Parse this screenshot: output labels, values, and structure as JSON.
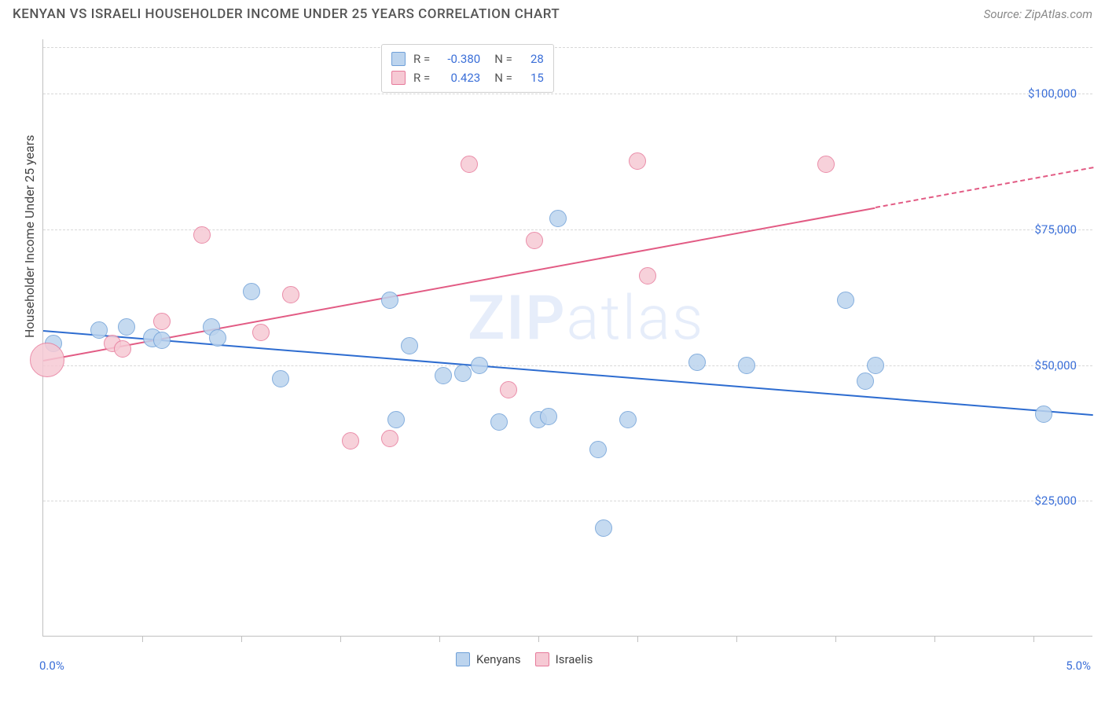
{
  "header": {
    "title": "KENYAN VS ISRAELI HOUSEHOLDER INCOME UNDER 25 YEARS CORRELATION CHART",
    "source_prefix": "Source: ",
    "source_name": "ZipAtlas.com"
  },
  "chart": {
    "type": "scatter",
    "y_axis": {
      "title": "Householder Income Under 25 years",
      "min": 0,
      "max": 110000,
      "ticks": [
        25000,
        50000,
        75000,
        100000
      ],
      "tick_labels": [
        "$25,000",
        "$50,000",
        "$75,000",
        "$100,000"
      ],
      "grid_color": "#d8d8d8",
      "label_color": "#3b6fd8"
    },
    "x_axis": {
      "min": 0,
      "max": 5.3,
      "ticks": [
        0.5,
        1.0,
        1.5,
        2.0,
        2.5,
        3.0,
        3.5,
        4.0,
        4.5,
        5.0
      ],
      "end_labels": {
        "left": "0.0%",
        "right": "5.0%"
      },
      "label_color": "#3b6fd8"
    },
    "watermark": {
      "text_bold": "ZIP",
      "text_light": "atlas"
    },
    "series": [
      {
        "key": "kenyans",
        "label": "Kenyans",
        "fill": "#bcd4ee",
        "stroke": "#6fa0d8",
        "trend_color": "#2d6cd0",
        "R": "-0.380",
        "N": "28",
        "trend": {
          "x1": 0.0,
          "y1": 56500,
          "x2": 5.3,
          "y2": 41000,
          "dash_from_x": null
        },
        "points": [
          {
            "x": 0.05,
            "y": 54000,
            "r": 11
          },
          {
            "x": 0.28,
            "y": 56500,
            "r": 11
          },
          {
            "x": 0.42,
            "y": 57000,
            "r": 11
          },
          {
            "x": 0.55,
            "y": 55000,
            "r": 12
          },
          {
            "x": 0.6,
            "y": 54500,
            "r": 11
          },
          {
            "x": 0.85,
            "y": 57000,
            "r": 11
          },
          {
            "x": 0.88,
            "y": 55000,
            "r": 11
          },
          {
            "x": 1.05,
            "y": 63500,
            "r": 11
          },
          {
            "x": 1.2,
            "y": 47500,
            "r": 11
          },
          {
            "x": 1.75,
            "y": 62000,
            "r": 11
          },
          {
            "x": 1.78,
            "y": 40000,
            "r": 11
          },
          {
            "x": 1.85,
            "y": 53500,
            "r": 11
          },
          {
            "x": 2.02,
            "y": 48000,
            "r": 11
          },
          {
            "x": 2.12,
            "y": 48500,
            "r": 11
          },
          {
            "x": 2.2,
            "y": 50000,
            "r": 11
          },
          {
            "x": 2.3,
            "y": 39500,
            "r": 11
          },
          {
            "x": 2.5,
            "y": 40000,
            "r": 11
          },
          {
            "x": 2.55,
            "y": 40500,
            "r": 11
          },
          {
            "x": 2.6,
            "y": 77000,
            "r": 11
          },
          {
            "x": 2.8,
            "y": 34500,
            "r": 11
          },
          {
            "x": 2.83,
            "y": 20000,
            "r": 11
          },
          {
            "x": 2.95,
            "y": 40000,
            "r": 11
          },
          {
            "x": 3.3,
            "y": 50500,
            "r": 11
          },
          {
            "x": 3.55,
            "y": 50000,
            "r": 11
          },
          {
            "x": 4.05,
            "y": 62000,
            "r": 11
          },
          {
            "x": 4.15,
            "y": 47000,
            "r": 11
          },
          {
            "x": 4.2,
            "y": 50000,
            "r": 11
          },
          {
            "x": 5.05,
            "y": 41000,
            "r": 11
          }
        ]
      },
      {
        "key": "israelis",
        "label": "Israelis",
        "fill": "#f6c9d4",
        "stroke": "#e77a9b",
        "trend_color": "#e25b84",
        "R": "0.423",
        "N": "15",
        "trend": {
          "x1": 0.0,
          "y1": 51000,
          "x2": 5.3,
          "y2": 86500,
          "dash_from_x": 4.2
        },
        "points": [
          {
            "x": 0.02,
            "y": 51000,
            "r": 22
          },
          {
            "x": 0.35,
            "y": 54000,
            "r": 11
          },
          {
            "x": 0.4,
            "y": 53000,
            "r": 11
          },
          {
            "x": 0.6,
            "y": 58000,
            "r": 11
          },
          {
            "x": 0.8,
            "y": 74000,
            "r": 11
          },
          {
            "x": 1.1,
            "y": 56000,
            "r": 11
          },
          {
            "x": 1.25,
            "y": 63000,
            "r": 11
          },
          {
            "x": 1.55,
            "y": 36000,
            "r": 11
          },
          {
            "x": 1.75,
            "y": 36500,
            "r": 11
          },
          {
            "x": 2.15,
            "y": 87000,
            "r": 11
          },
          {
            "x": 2.35,
            "y": 45500,
            "r": 11
          },
          {
            "x": 2.48,
            "y": 73000,
            "r": 11
          },
          {
            "x": 3.0,
            "y": 87500,
            "r": 11
          },
          {
            "x": 3.05,
            "y": 66500,
            "r": 11
          },
          {
            "x": 3.95,
            "y": 87000,
            "r": 11
          }
        ]
      }
    ],
    "stats_box": {
      "R_label": "R =",
      "N_label": "N ="
    },
    "legend_bottom": [
      "Kenyans",
      "Israelis"
    ]
  }
}
